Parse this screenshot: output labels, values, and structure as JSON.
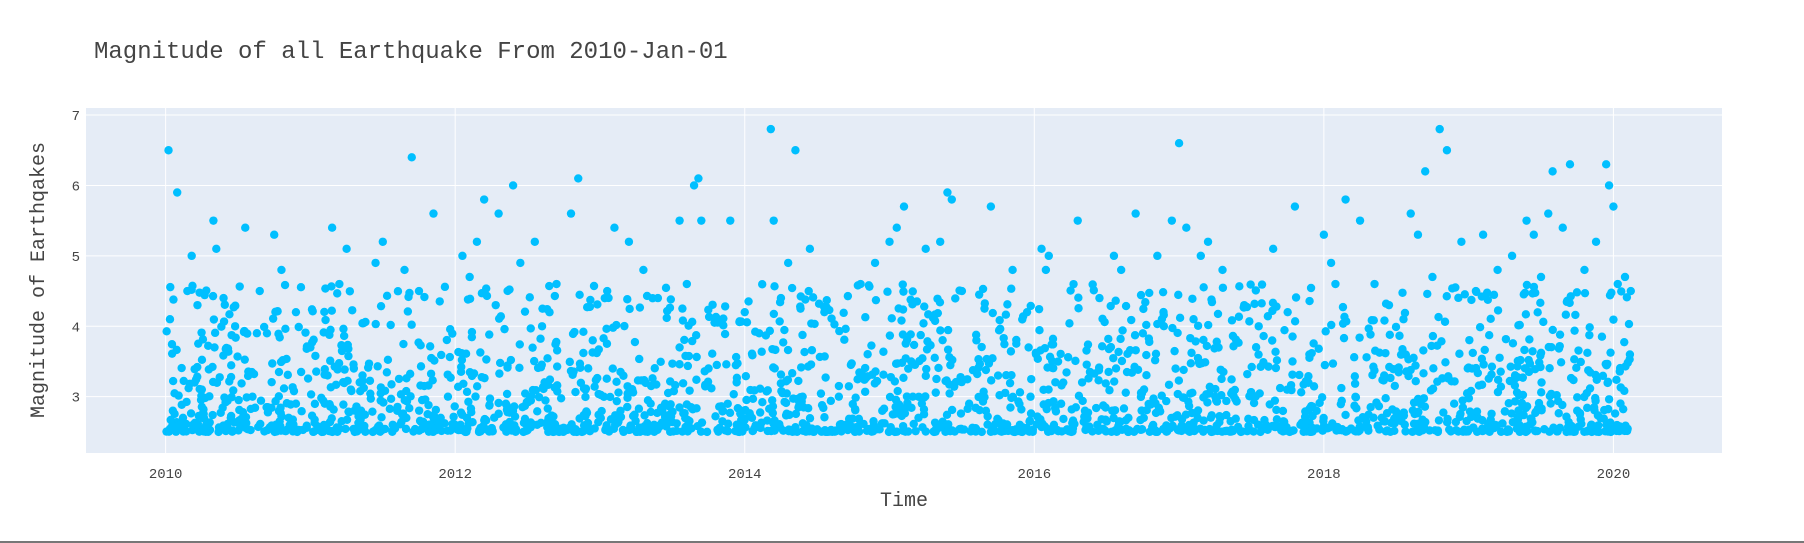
{
  "colors": {
    "plot_background": "#e5ecf6",
    "grid": "#ffffff",
    "marker": "#00bfff",
    "text": "#444444"
  },
  "chart_data": {
    "type": "scatter",
    "title": "Magnitude of all Earthquake From 2010-Jan-01",
    "xlabel": "Time",
    "ylabel": "Magnitude of Earthqakes",
    "x_is_year": true,
    "xlim": [
      2009.45,
      2020.75
    ],
    "ylim": [
      2.2,
      7.1
    ],
    "x_ticks": [
      2010,
      2012,
      2014,
      2016,
      2018,
      2020
    ],
    "x_tick_labels": [
      "2010",
      "2012",
      "2014",
      "2016",
      "2018",
      "2020"
    ],
    "y_ticks": [
      3,
      4,
      5,
      6,
      7
    ],
    "y_tick_labels": [
      "3",
      "4",
      "5",
      "6",
      "7"
    ],
    "grid": true,
    "marker_color": "#00bfff",
    "series": [
      {
        "x": [
          2010.02,
          2010.03,
          2010.05,
          2010.08,
          2010.12,
          2010.15,
          2010.18,
          2010.2,
          2010.22,
          2010.28,
          2010.33,
          2010.35,
          2010.4,
          2010.48,
          2010.55,
          2010.6,
          2010.65,
          2010.7,
          2010.75,
          2010.8,
          2010.85,
          2010.9,
          2011.0,
          2011.1,
          2011.15,
          2011.2,
          2011.25,
          2011.3,
          2011.45,
          2011.5,
          2011.6,
          2011.65,
          2011.7,
          2011.75,
          2011.8,
          2011.85,
          2011.95,
          2012.05,
          2012.1,
          2012.15,
          2012.2,
          2012.28,
          2012.3,
          2012.35,
          2012.4,
          2012.45,
          2012.55,
          2012.6,
          2012.65,
          2012.7,
          2012.8,
          2012.85,
          2012.95,
          2013.05,
          2013.1,
          2013.2,
          2013.3,
          2013.4,
          2013.45,
          2013.55,
          2013.6,
          2013.65,
          2013.68,
          2013.7,
          2013.75,
          2013.9,
          2014.0,
          2014.1,
          2014.18,
          2014.2,
          2014.25,
          2014.3,
          2014.35,
          2014.45,
          2014.55,
          2014.65,
          2014.8,
          2014.9,
          2014.95,
          2015.0,
          2015.05,
          2015.1,
          2015.15,
          2015.25,
          2015.35,
          2015.4,
          2015.43,
          2015.5,
          2015.6,
          2015.7,
          2015.75,
          2015.85,
          2015.95,
          2016.05,
          2016.08,
          2016.1,
          2016.2,
          2016.3,
          2016.45,
          2016.55,
          2016.6,
          2016.7,
          2016.75,
          2016.85,
          2016.95,
          2017.0,
          2017.05,
          2017.1,
          2017.15,
          2017.2,
          2017.3,
          2017.45,
          2017.55,
          2017.65,
          2017.75,
          2017.8,
          2017.9,
          2018.0,
          2018.05,
          2018.08,
          2018.15,
          2018.25,
          2018.35,
          2018.45,
          2018.55,
          2018.6,
          2018.65,
          2018.7,
          2018.75,
          2018.8,
          2018.85,
          2018.95,
          2019.05,
          2019.1,
          2019.2,
          2019.3,
          2019.4,
          2019.45,
          2019.5,
          2019.55,
          2019.58,
          2019.65,
          2019.7,
          2019.8,
          2019.88,
          2019.95,
          2019.97,
          2020.0,
          2020.03,
          2020.08,
          2020.12,
          2010.1,
          2010.25,
          2010.45,
          2010.9,
          2011.35,
          2011.9,
          2012.5,
          2012.9,
          2013.35,
          2013.85,
          2014.05,
          2014.4,
          2014.7,
          2015.2,
          2015.55,
          2015.9,
          2016.35,
          2016.65,
          2017.25,
          2017.6,
          2017.95,
          2018.4,
          2018.9,
          2019.35,
          2019.75
        ],
        "y": [
          6.5,
          4.1,
          2.8,
          5.9,
          2.7,
          4.5,
          5.0,
          3.2,
          4.3,
          2.6,
          5.5,
          5.1,
          4.4,
          4.0,
          5.4,
          3.0,
          4.5,
          3.9,
          5.3,
          4.8,
          2.7,
          4.2,
          3.7,
          2.9,
          5.4,
          4.6,
          5.1,
          3.4,
          4.9,
          5.2,
          2.8,
          4.8,
          6.4,
          4.5,
          2.6,
          5.6,
          3.0,
          5.0,
          4.7,
          5.2,
          5.8,
          4.3,
          5.6,
          2.9,
          6.0,
          4.9,
          5.2,
          4.0,
          2.7,
          4.6,
          5.6,
          6.1,
          3.8,
          4.5,
          5.4,
          5.2,
          4.8,
          4.4,
          2.9,
          5.5,
          4.6,
          6.0,
          6.1,
          5.5,
          3.4,
          5.5,
          4.2,
          3.9,
          6.8,
          5.5,
          4.4,
          4.9,
          6.5,
          5.1,
          4.2,
          3.0,
          4.6,
          4.9,
          2.8,
          5.2,
          5.4,
          5.7,
          3.5,
          5.1,
          5.2,
          5.9,
          5.8,
          4.5,
          3.8,
          5.7,
          3.3,
          4.8,
          4.2,
          5.1,
          4.8,
          5.0,
          3.2,
          5.5,
          4.4,
          5.0,
          4.8,
          5.6,
          3.9,
          5.0,
          5.5,
          6.6,
          5.4,
          4.1,
          5.0,
          5.2,
          4.8,
          4.3,
          4.0,
          5.1,
          4.2,
          5.7,
          3.6,
          5.3,
          4.9,
          4.6,
          5.8,
          5.5,
          4.6,
          4.3,
          4.1,
          5.6,
          5.3,
          6.2,
          4.7,
          6.8,
          6.5,
          5.2,
          4.5,
          5.3,
          4.8,
          5.0,
          5.5,
          5.3,
          4.7,
          5.6,
          6.2,
          5.4,
          6.3,
          4.8,
          5.2,
          6.3,
          6.0,
          5.7,
          4.6,
          4.7,
          4.5,
          2.6,
          3.1,
          2.7,
          2.9,
          2.8,
          2.7,
          2.6,
          3.1,
          2.9,
          2.8,
          2.7,
          3.0,
          2.6,
          2.7,
          2.9,
          2.6,
          2.8,
          2.7,
          3.0,
          2.6,
          2.8,
          2.7,
          2.9,
          2.6,
          2.8
        ],
        "dense_band": {
          "x_range": [
            2010.0,
            2020.12
          ],
          "y_range": [
            2.5,
            3.4
          ],
          "upper_tail_range": [
            3.4,
            4.6
          ]
        }
      }
    ]
  }
}
